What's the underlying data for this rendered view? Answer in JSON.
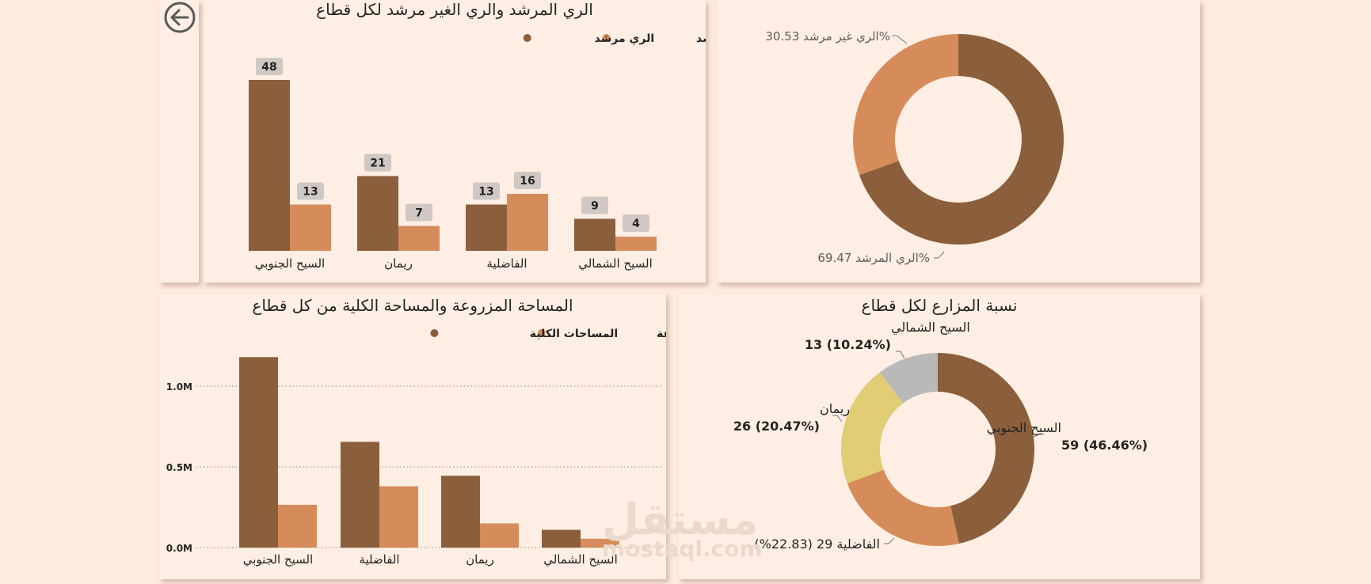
{
  "colors": {
    "background": "#ffebdf",
    "panel": "#feeee3",
    "guided": "#8b5e3c",
    "unguided": "#d68c5a",
    "yellow": "#e0cd74",
    "gray": "#b9b9b9",
    "label_box": "#cfc8c4"
  },
  "back_icon": "back-arrow-icon",
  "watermark": {
    "arabic": "مستقل",
    "latin": "mostaql.com"
  },
  "chart_data": [
    {
      "type": "bar",
      "title": "الري المرشد والري الغير مرشد لكل قطاع",
      "legend": {
        "position": "top-right",
        "entries": [
          "الري غير مرشد",
          "الري مرشد"
        ]
      },
      "categories": [
        "السيح الجنوبي",
        "ريمان",
        "الفاضلية",
        "السيح الشمالي"
      ],
      "series": [
        {
          "name": "الري مرشد",
          "values": [
            48,
            21,
            13,
            9
          ]
        },
        {
          "name": "الري غير مرشد",
          "values": [
            13,
            7,
            16,
            4
          ]
        }
      ],
      "ylim": [
        0,
        52
      ]
    },
    {
      "type": "pie",
      "title": "",
      "labels": [
        "الري المرشد",
        "الري غير مرشد"
      ],
      "values": [
        69.47,
        30.53
      ],
      "display": [
        "69.47%",
        "30.53%"
      ]
    },
    {
      "type": "bar",
      "title": "المساحة المزروعة والمساحة الكلية من كل قطاع",
      "legend": {
        "position": "top-right",
        "entries": [
          "المساحات المزروعة",
          "المساحات الكلية"
        ]
      },
      "categories": [
        "السيح الجنوبي",
        "الفاضلية",
        "ريمان",
        "السيح الشمالي"
      ],
      "series": [
        {
          "name": "المساحات الكلية",
          "values": [
            1180000,
            655000,
            445000,
            110000
          ]
        },
        {
          "name": "المساحات المزروعة",
          "values": [
            265000,
            380000,
            150000,
            55000
          ]
        }
      ],
      "yticks": [
        0,
        500000,
        1000000
      ],
      "ytick_labels": [
        "0.0M",
        "0.5M",
        "1.0M"
      ],
      "ylim": [
        0,
        1200000
      ]
    },
    {
      "type": "pie",
      "title": "نسبة المزارع لكل قطاع",
      "labels": [
        "السيح الجنوبي",
        "الفاضلية",
        "ريمان",
        "السيح الشمالي"
      ],
      "values": [
        59,
        29,
        26,
        13
      ],
      "percents": [
        "46.46%",
        "22.83%",
        "20.47%",
        "10.24%"
      ]
    }
  ]
}
